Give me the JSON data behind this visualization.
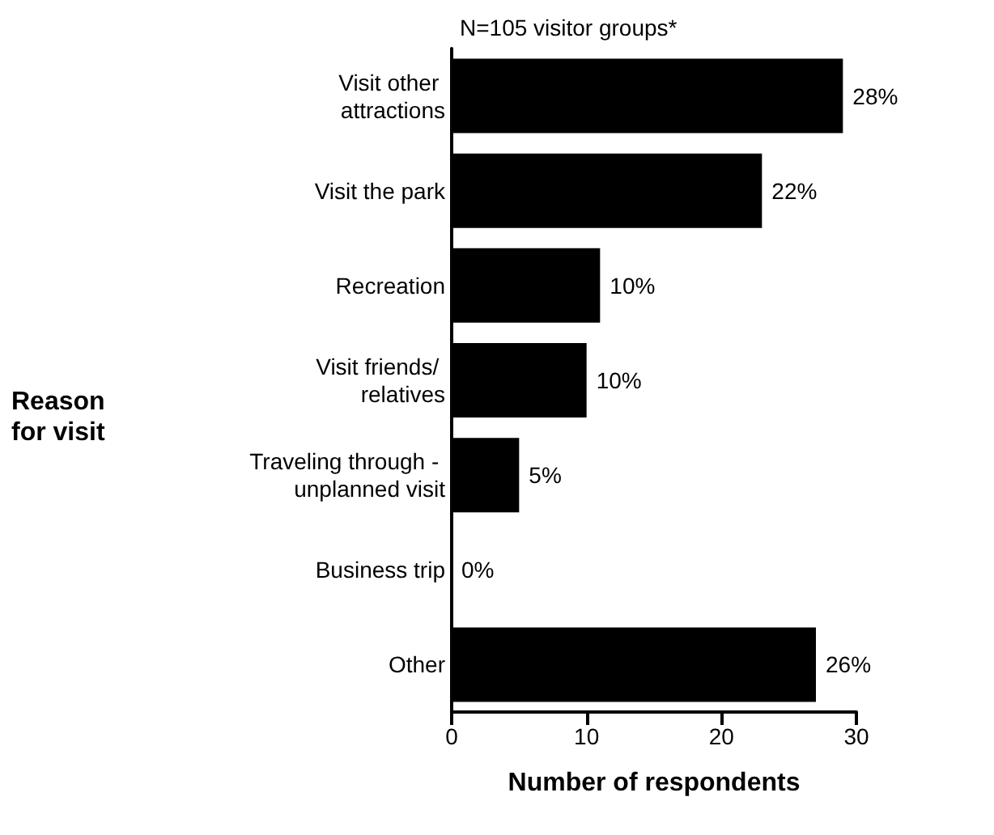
{
  "chart_data": {
    "type": "bar",
    "orientation": "horizontal",
    "title": "N=105 visitor groups*",
    "xlabel": "Number of respondents",
    "categories": [
      "Visit other attractions",
      "Visit the park",
      "Recreation",
      "Visit friends/ relatives",
      "Traveling through - unplanned visit",
      "Business trip",
      "Other"
    ],
    "values": [
      29,
      23,
      11,
      10,
      5,
      0,
      27
    ],
    "annotations": [
      "Reason\nfor visit",
      {
        "text": "28%",
        "x": 29,
        "y": "Visit other attractions"
      },
      {
        "text": "22%",
        "x": 23,
        "y": "Visit the park"
      },
      {
        "text": "10%",
        "x": 11,
        "y": "Recreation"
      },
      {
        "text": "10%",
        "x": 10,
        "y": "Visit friends/ relatives"
      },
      {
        "text": "5%",
        "x": 5,
        "y": "Traveling through - unplanned visit"
      },
      {
        "text": "0%",
        "x": 0,
        "y": "Business trip"
      },
      {
        "text": "26%",
        "x": 27,
        "y": "Other"
      }
    ],
    "color": "#000000",
    "xlim": [
      0,
      30
    ],
    "xticks": [
      0,
      10,
      20,
      30
    ],
    "grid": false
  }
}
